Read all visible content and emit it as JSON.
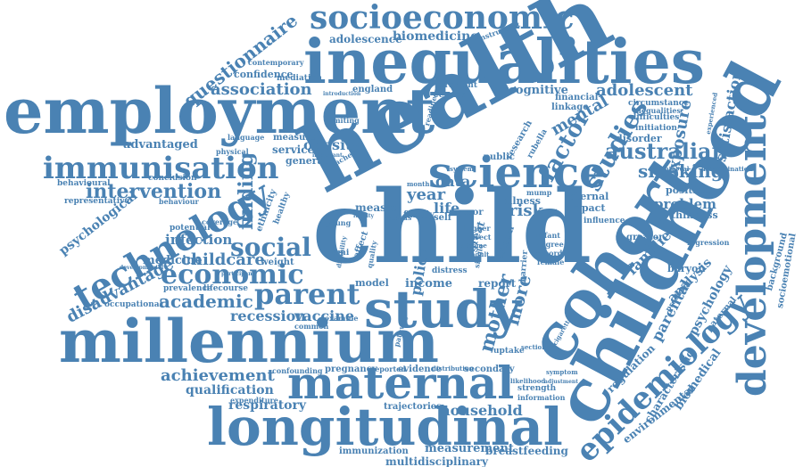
{
  "word_color": "#4a82b3",
  "words": [
    "socioeconomic",
    "inequalities",
    "employment",
    "health",
    "child",
    "childhood",
    "cohort",
    "development",
    "millennium",
    "longitudinal",
    "maternal",
    "study",
    "science",
    "technology",
    "immunisation",
    "economic",
    "parent",
    "social",
    "intervention",
    "epidemiology",
    "association",
    "questionnaire",
    "adolescence",
    "biomedicine",
    "australian",
    "studies",
    "factor",
    "mental",
    "adolescent",
    "exposure",
    "satisfaction",
    "smoking",
    "finding",
    "childcare",
    "achievement",
    "qualification",
    "recession",
    "vaccine",
    "academic",
    "disadvantage",
    "infection",
    "medicine",
    "psychological",
    "respiratory",
    "household",
    "measurement",
    "immunization",
    "multidisciplinary",
    "breastfeeding",
    "environmental",
    "biomedical",
    "characteristic",
    "psychology",
    "analysis",
    "families",
    "problem",
    "obesity",
    "advantaged",
    "cognitive",
    "data",
    "year",
    "life",
    "risk",
    "policy",
    "mother",
    "more",
    "income",
    "report",
    "model",
    "pregnancy",
    "evidence",
    "secondary",
    "confidence",
    "contemporary",
    "mediation",
    "england",
    "gradient",
    "eczema",
    "instrument",
    "financial",
    "linkage",
    "circumstance",
    "inequalities",
    "difficulties",
    "initiation",
    "disorder",
    "experienced",
    "interval",
    "discrimination",
    "position",
    "thinness",
    "greater",
    "regression",
    "background",
    "socioemotional",
    "paternal",
    "behavioural",
    "representative",
    "conclusion",
    "behaviour",
    "ethnicity",
    "healthy",
    "potential",
    "weight",
    "prevalence",
    "lifecourse",
    "occupational",
    "coverage",
    "developmental",
    "participant",
    "language",
    "physical",
    "measure",
    "service",
    "general",
    "important",
    "teacher",
    "month",
    "measle",
    "illness",
    "internal",
    "impact",
    "mump",
    "height",
    "family",
    "poor",
    "self",
    "faculty",
    "status",
    "young",
    "disability",
    "effect",
    "quality",
    "distress",
    "great",
    "esteem",
    "barrier",
    "infant",
    "degree",
    "record",
    "female",
    "baryon",
    "influence",
    "uptake",
    "sectional",
    "cigarette",
    "symptom",
    "strength",
    "information",
    "expenditure",
    "confounding",
    "reported",
    "distribution",
    "trajectories",
    "examine",
    "common",
    "limiting",
    "public",
    "research",
    "rubella",
    "parental",
    "regulation",
    "predictor",
    "adjustment",
    "likelihood",
    "pathway",
    "introduction",
    "readiness",
    "system",
    "higher",
    "direct",
    "outcome",
    "adult",
    "single",
    "bmi"
  ]
}
